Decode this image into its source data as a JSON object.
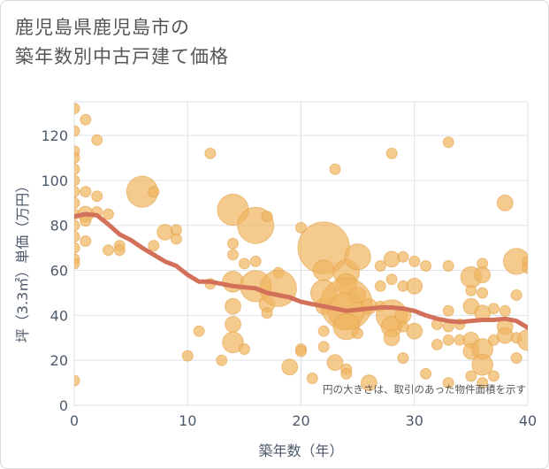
{
  "title_lines": [
    "鹿児島県鹿児島市の",
    "築年数別中古戸建て価格"
  ],
  "chart_data": {
    "type": "scatter",
    "title": "鹿児島県鹿児島市の築年数別中古戸建て価格",
    "xlabel": "築年数（年）",
    "ylabel": "坪（3.3㎡）単価（万円）",
    "xlim": [
      0,
      40
    ],
    "ylim": [
      0,
      135
    ],
    "x_ticks": [
      0,
      10,
      20,
      30,
      40
    ],
    "y_ticks": [
      0,
      20,
      40,
      60,
      80,
      100,
      120
    ],
    "grid": true,
    "annotation": "円の大きさは、取引のあった物件面積を示す",
    "colors": {
      "bubble": "#f0b661",
      "bubble_stroke": "#e3a24a",
      "trend": "#d2705a",
      "grid": "#dde3ea",
      "axis_text": "#4d5a6b"
    },
    "points": [
      {
        "x": 0,
        "y": 132,
        "s": 1
      },
      {
        "x": 0,
        "y": 122,
        "s": 1
      },
      {
        "x": 0,
        "y": 113,
        "s": 1
      },
      {
        "x": 0,
        "y": 110,
        "s": 1
      },
      {
        "x": 0,
        "y": 105,
        "s": 1
      },
      {
        "x": 0,
        "y": 100,
        "s": 1
      },
      {
        "x": 0,
        "y": 95,
        "s": 1
      },
      {
        "x": 0,
        "y": 90,
        "s": 1
      },
      {
        "x": 0,
        "y": 85,
        "s": 1
      },
      {
        "x": 0,
        "y": 80,
        "s": 1
      },
      {
        "x": 0,
        "y": 75,
        "s": 1
      },
      {
        "x": 0,
        "y": 70,
        "s": 1
      },
      {
        "x": 0,
        "y": 65,
        "s": 1
      },
      {
        "x": 0,
        "y": 63,
        "s": 1
      },
      {
        "x": 0,
        "y": 11,
        "s": 1
      },
      {
        "x": 1,
        "y": 127,
        "s": 1
      },
      {
        "x": 2,
        "y": 118,
        "s": 1
      },
      {
        "x": 1,
        "y": 95,
        "s": 1
      },
      {
        "x": 2,
        "y": 93,
        "s": 1
      },
      {
        "x": 1,
        "y": 85,
        "s": 2
      },
      {
        "x": 1,
        "y": 82,
        "s": 1
      },
      {
        "x": 2,
        "y": 86,
        "s": 1
      },
      {
        "x": 3,
        "y": 85,
        "s": 1
      },
      {
        "x": 1,
        "y": 73,
        "s": 1
      },
      {
        "x": 3,
        "y": 69,
        "s": 1
      },
      {
        "x": 4,
        "y": 71,
        "s": 1
      },
      {
        "x": 4,
        "y": 69,
        "s": 1
      },
      {
        "x": 6,
        "y": 95,
        "s": 5
      },
      {
        "x": 7,
        "y": 95,
        "s": 1
      },
      {
        "x": 8,
        "y": 77,
        "s": 2
      },
      {
        "x": 9,
        "y": 78,
        "s": 1
      },
      {
        "x": 9,
        "y": 74,
        "s": 1
      },
      {
        "x": 7,
        "y": 71,
        "s": 1
      },
      {
        "x": 10,
        "y": 22,
        "s": 1
      },
      {
        "x": 11,
        "y": 33,
        "s": 1
      },
      {
        "x": 12,
        "y": 112,
        "s": 1
      },
      {
        "x": 12,
        "y": 54,
        "s": 1
      },
      {
        "x": 14,
        "y": 87,
        "s": 5
      },
      {
        "x": 14,
        "y": 72,
        "s": 1
      },
      {
        "x": 14,
        "y": 67,
        "s": 1
      },
      {
        "x": 14,
        "y": 55,
        "s": 3
      },
      {
        "x": 14,
        "y": 44,
        "s": 2
      },
      {
        "x": 14,
        "y": 36,
        "s": 2
      },
      {
        "x": 14,
        "y": 28,
        "s": 3
      },
      {
        "x": 13,
        "y": 20,
        "s": 1
      },
      {
        "x": 15,
        "y": 25,
        "s": 1
      },
      {
        "x": 15,
        "y": 63,
        "s": 1
      },
      {
        "x": 16,
        "y": 80,
        "s": 6
      },
      {
        "x": 16,
        "y": 64,
        "s": 1
      },
      {
        "x": 16,
        "y": 53,
        "s": 5
      },
      {
        "x": 17,
        "y": 84,
        "s": 1
      },
      {
        "x": 17,
        "y": 45,
        "s": 2
      },
      {
        "x": 17,
        "y": 41,
        "s": 1
      },
      {
        "x": 18,
        "y": 59,
        "s": 1
      },
      {
        "x": 18,
        "y": 52,
        "s": 6
      },
      {
        "x": 19,
        "y": 17,
        "s": 2
      },
      {
        "x": 20,
        "y": 79,
        "s": 1
      },
      {
        "x": 20,
        "y": 25,
        "s": 1
      },
      {
        "x": 20,
        "y": 24,
        "s": 1
      },
      {
        "x": 21,
        "y": 12,
        "s": 1
      },
      {
        "x": 22,
        "y": 70,
        "s": 9
      },
      {
        "x": 22,
        "y": 60,
        "s": 3
      },
      {
        "x": 22,
        "y": 50,
        "s": 4
      },
      {
        "x": 22,
        "y": 44,
        "s": 2
      },
      {
        "x": 22,
        "y": 33,
        "s": 1
      },
      {
        "x": 22,
        "y": 26,
        "s": 1
      },
      {
        "x": 23,
        "y": 105,
        "s": 1
      },
      {
        "x": 23,
        "y": 19,
        "s": 2
      },
      {
        "x": 24,
        "y": 59,
        "s": 4
      },
      {
        "x": 24,
        "y": 54,
        "s": 3
      },
      {
        "x": 24,
        "y": 45,
        "s": 9
      },
      {
        "x": 24,
        "y": 42,
        "s": 6
      },
      {
        "x": 24,
        "y": 35,
        "s": 4
      },
      {
        "x": 24,
        "y": 16,
        "s": 1
      },
      {
        "x": 24,
        "y": 14,
        "s": 1
      },
      {
        "x": 25,
        "y": 66,
        "s": 4
      },
      {
        "x": 25,
        "y": 49,
        "s": 2
      },
      {
        "x": 25,
        "y": 32,
        "s": 1
      },
      {
        "x": 26,
        "y": 44,
        "s": 2
      },
      {
        "x": 26,
        "y": 10,
        "s": 2
      },
      {
        "x": 27,
        "y": 62,
        "s": 1
      },
      {
        "x": 27,
        "y": 53,
        "s": 1
      },
      {
        "x": 27,
        "y": 44,
        "s": 1
      },
      {
        "x": 28,
        "y": 112,
        "s": 1
      },
      {
        "x": 28,
        "y": 65,
        "s": 2
      },
      {
        "x": 28,
        "y": 56,
        "s": 1
      },
      {
        "x": 28,
        "y": 40,
        "s": 5
      },
      {
        "x": 28,
        "y": 35,
        "s": 3
      },
      {
        "x": 28,
        "y": 30,
        "s": 2
      },
      {
        "x": 29,
        "y": 66,
        "s": 1
      },
      {
        "x": 29,
        "y": 53,
        "s": 1
      },
      {
        "x": 29,
        "y": 40,
        "s": 2
      },
      {
        "x": 29,
        "y": 35,
        "s": 1
      },
      {
        "x": 29,
        "y": 21,
        "s": 1
      },
      {
        "x": 30,
        "y": 64,
        "s": 1
      },
      {
        "x": 30,
        "y": 53,
        "s": 2
      },
      {
        "x": 30,
        "y": 33,
        "s": 2
      },
      {
        "x": 31,
        "y": 62,
        "s": 1
      },
      {
        "x": 31,
        "y": 14,
        "s": 1
      },
      {
        "x": 32,
        "y": 36,
        "s": 1
      },
      {
        "x": 32,
        "y": 27,
        "s": 1
      },
      {
        "x": 33,
        "y": 117,
        "s": 1
      },
      {
        "x": 33,
        "y": 62,
        "s": 1
      },
      {
        "x": 33,
        "y": 42,
        "s": 1
      },
      {
        "x": 33,
        "y": 35,
        "s": 1
      },
      {
        "x": 33,
        "y": 29,
        "s": 1
      },
      {
        "x": 33,
        "y": 10,
        "s": 1
      },
      {
        "x": 34,
        "y": 36,
        "s": 1
      },
      {
        "x": 34,
        "y": 29,
        "s": 1
      },
      {
        "x": 35,
        "y": 57,
        "s": 3
      },
      {
        "x": 35,
        "y": 51,
        "s": 1
      },
      {
        "x": 35,
        "y": 44,
        "s": 2
      },
      {
        "x": 35,
        "y": 29,
        "s": 2
      },
      {
        "x": 35,
        "y": 24,
        "s": 2
      },
      {
        "x": 35,
        "y": 13,
        "s": 1
      },
      {
        "x": 36,
        "y": 63,
        "s": 1
      },
      {
        "x": 36,
        "y": 58,
        "s": 2
      },
      {
        "x": 36,
        "y": 50,
        "s": 1
      },
      {
        "x": 36,
        "y": 41,
        "s": 2
      },
      {
        "x": 36,
        "y": 25,
        "s": 3
      },
      {
        "x": 36,
        "y": 18,
        "s": 3
      },
      {
        "x": 36,
        "y": 10,
        "s": 1
      },
      {
        "x": 37,
        "y": 43,
        "s": 1
      },
      {
        "x": 37,
        "y": 29,
        "s": 1
      },
      {
        "x": 37,
        "y": 13,
        "s": 1
      },
      {
        "x": 38,
        "y": 90,
        "s": 2
      },
      {
        "x": 38,
        "y": 42,
        "s": 1
      },
      {
        "x": 38,
        "y": 35,
        "s": 2
      },
      {
        "x": 38,
        "y": 31,
        "s": 2
      },
      {
        "x": 39,
        "y": 64,
        "s": 4
      },
      {
        "x": 39,
        "y": 49,
        "s": 1
      },
      {
        "x": 39,
        "y": 30,
        "s": 1
      },
      {
        "x": 39,
        "y": 21,
        "s": 1
      },
      {
        "x": 40,
        "y": 64,
        "s": 1
      },
      {
        "x": 40,
        "y": 61,
        "s": 1
      },
      {
        "x": 40,
        "y": 29,
        "s": 3
      }
    ],
    "trend": {
      "x": [
        0,
        1,
        2,
        3,
        4,
        5,
        6,
        7,
        8,
        9,
        10,
        11,
        12,
        13,
        14,
        15,
        16,
        17,
        18,
        19,
        20,
        21,
        22,
        23,
        24,
        25,
        26,
        27,
        28,
        29,
        30,
        31,
        32,
        33,
        34,
        35,
        36,
        37,
        38,
        39,
        40
      ],
      "y": [
        84,
        85,
        84.5,
        80.5,
        76,
        73.5,
        70,
        67,
        64,
        62,
        58,
        55,
        55,
        54,
        53,
        52.5,
        52,
        50,
        49,
        48,
        46,
        45,
        44,
        43,
        42,
        42.5,
        43,
        43.5,
        43.5,
        43,
        42,
        40,
        38.5,
        37.5,
        37,
        37.5,
        38,
        38,
        38.5,
        37.5,
        34.5
      ]
    }
  }
}
